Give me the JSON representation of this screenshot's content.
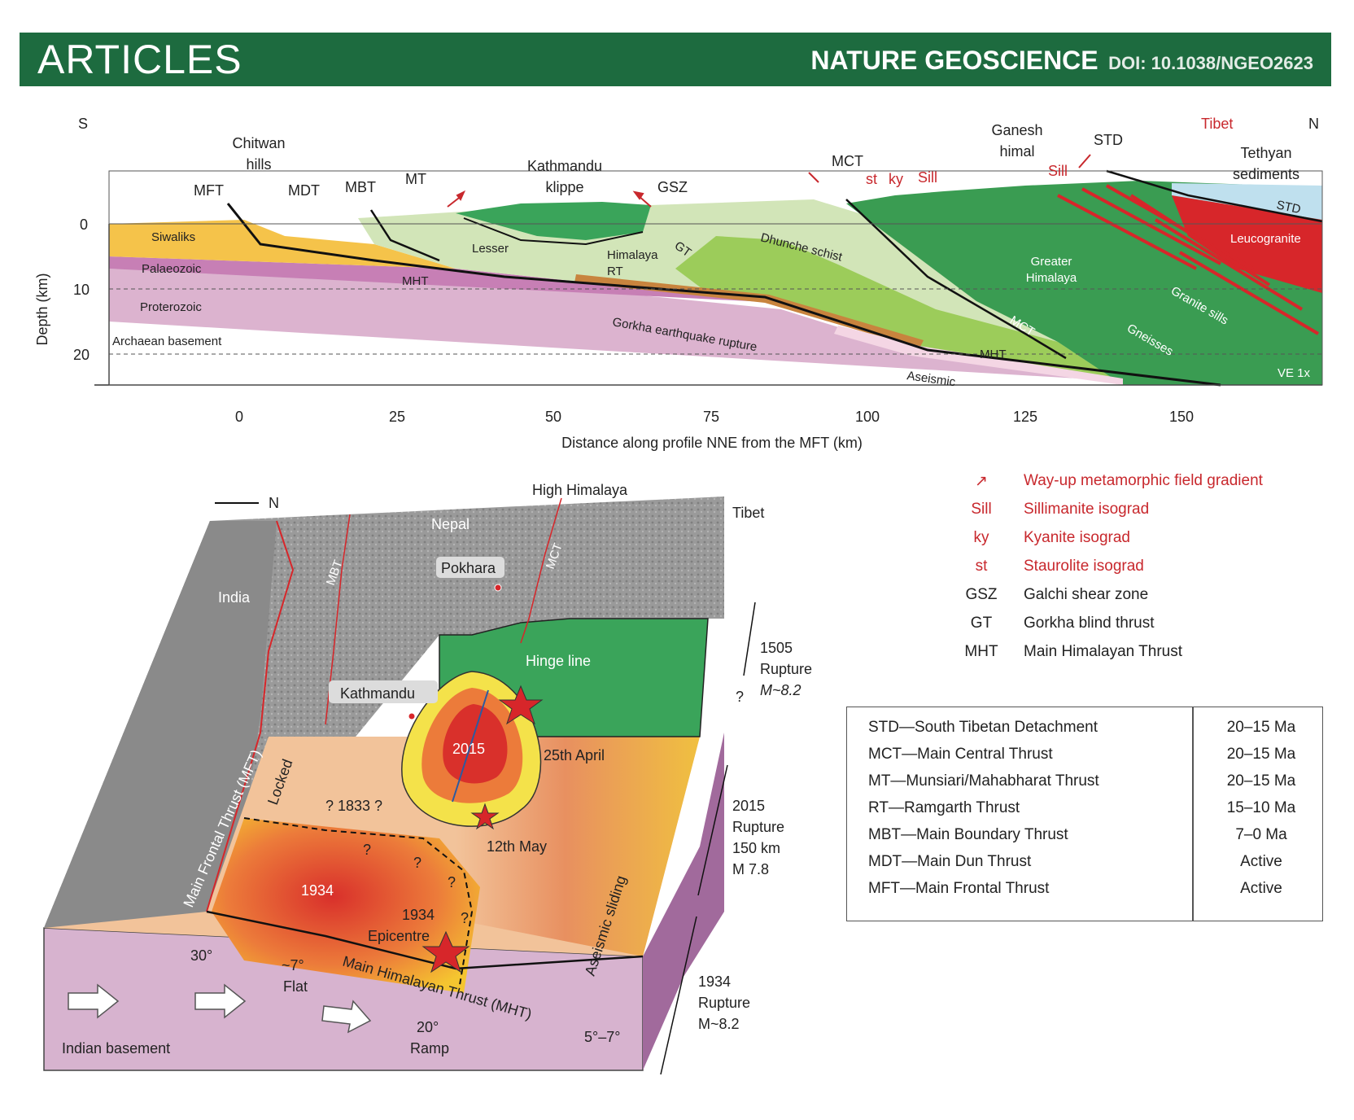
{
  "banner": {
    "section": "ARTICLES",
    "journal": "NATURE GEOSCIENCE",
    "doi": "DOI: 10.1038/NGEO2623"
  },
  "cross_section": {
    "south": "S",
    "north": "N",
    "y_axis_title": "Depth (km)",
    "y_ticks": [
      "0",
      "10",
      "20"
    ],
    "x_axis_title": "Distance along profile NNE from the MFT (km)",
    "x_ticks": [
      "0",
      "25",
      "50",
      "75",
      "100",
      "125",
      "150"
    ],
    "labels": {
      "chitwan_1": "Chitwan",
      "chitwan_2": "hills",
      "mft": "MFT",
      "mdt": "MDT",
      "mbt": "MBT",
      "mt": "MT",
      "kathmandu_1": "Kathmandu",
      "kathmandu_2": "klippe",
      "gsz": "GSZ",
      "mct": "MCT",
      "st": "st",
      "ky": "ky",
      "sill": "Sill",
      "ganesh_1": "Ganesh",
      "ganesh_2": "himal",
      "std": "STD",
      "sill2": "Sill",
      "tibet": "Tibet",
      "tethyan_1": "Tethyan",
      "tethyan_2": "sediments",
      "std_lower": "STD",
      "leucogranite": "Leucogranite",
      "siwaliks": "Siwaliks",
      "palaeozoic": "Palaeozoic",
      "proterozoic": "Proterozoic",
      "archaean": "Archaean basement",
      "mht": "MHT",
      "lesser": "Lesser",
      "himalaya": "Himalaya",
      "rt": "RT",
      "gt": "GT",
      "dhunche": "Dhunche schist",
      "greater_1": "Greater",
      "greater_2": "Himalaya",
      "mct2": "MCT",
      "granite_sills": "Granite sills",
      "gneisses": "Gneisses",
      "mht2": "MHT",
      "aseismic": "Aseismic",
      "gorkha": "Gorkha earthquake rupture",
      "ve": "VE 1x"
    }
  },
  "block": {
    "north": "N",
    "high_himalaya": "High Himalaya",
    "tibet": "Tibet",
    "nepal": "Nepal",
    "india": "India",
    "mbt": "MBT",
    "mct": "MCT",
    "pokhara": "Pokhara",
    "kathmandu": "Kathmandu",
    "hinge_line": "Hinge line",
    "e2015": "2015",
    "april": "25th April",
    "may": "12th May",
    "q1833": "? 1833 ?",
    "locked": "Locked",
    "mft": "Main Frontal Thrust (MFT)",
    "e1934": "1934",
    "e1934b": "1934",
    "epicentre": "Epicentre",
    "q": "?",
    "aseismic_sliding": "Aseismic sliding",
    "deg30": "30°",
    "deg7": "~7°",
    "flat": "Flat",
    "mht": "Main Himalayan Thrust (MHT)",
    "deg20": "20°",
    "ramp": "Ramp",
    "deg57": "5°–7°",
    "indian_basement": "Indian basement",
    "r1505_1": "1505",
    "r1505_2": "Rupture",
    "r1505_3": "M~8.2",
    "r1505_q": "?",
    "r2015_1": "2015",
    "r2015_2": "Rupture",
    "r2015_3": "150 km",
    "r2015_4": "M 7.8",
    "r1934_1": "1934",
    "r1934_2": "Rupture",
    "r1934_3": "M~8.2"
  },
  "legend": [
    {
      "symbol": "↗",
      "text": "Way-up metamorphic field gradient",
      "color": "#c8282d"
    },
    {
      "symbol": "Sill",
      "text": "Sillimanite isograd",
      "color": "#c8282d"
    },
    {
      "symbol": "ky",
      "text": "Kyanite isograd",
      "color": "#c8282d"
    },
    {
      "symbol": "st",
      "text": "Staurolite isograd",
      "color": "#c8282d"
    },
    {
      "symbol": "GSZ",
      "text": "Galchi shear zone",
      "color": "#222222"
    },
    {
      "symbol": "GT",
      "text": "Gorkha blind thrust",
      "color": "#222222"
    },
    {
      "symbol": "MHT",
      "text": "Main Himalayan Thrust",
      "color": "#222222"
    }
  ],
  "age_table": [
    {
      "name": "STD—South Tibetan Detachment",
      "age": "20–15 Ma"
    },
    {
      "name": "MCT—Main Central Thrust",
      "age": "20–15 Ma"
    },
    {
      "name": "MT—Munsiari/Mahabharat Thrust",
      "age": "20–15 Ma"
    },
    {
      "name": "RT—Ramgarth Thrust",
      "age": "15–10 Ma"
    },
    {
      "name": "MBT—Main Boundary Thrust",
      "age": "7–0 Ma"
    },
    {
      "name": "MDT—Main Dun Thrust",
      "age": "Active"
    },
    {
      "name": "MFT—Main Frontal Thrust",
      "age": "Active"
    }
  ]
}
